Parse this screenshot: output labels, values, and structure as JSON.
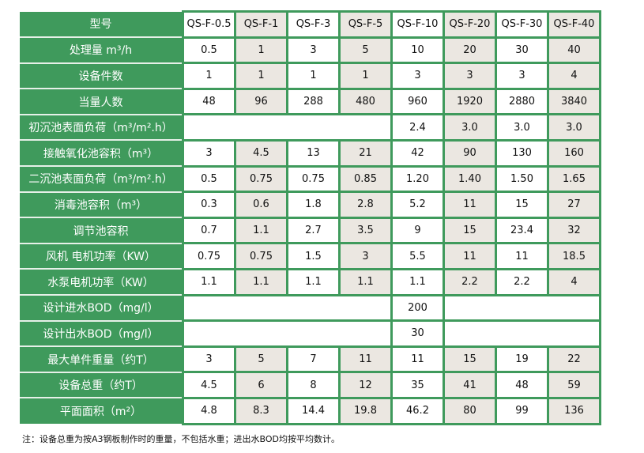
{
  "table": {
    "colors": {
      "label_bg": "#3f9a5c",
      "border": "#3f9a5c",
      "alt_cell": "#ebe7e1"
    },
    "rows": [
      {
        "label": "型号",
        "cells": [
          {
            "v": "QS-F-0.5"
          },
          {
            "v": "QS-F-1"
          },
          {
            "v": "QS-F-3"
          },
          {
            "v": "QS-F-5"
          },
          {
            "v": "QS-F-10"
          },
          {
            "v": "QS-F-20"
          },
          {
            "v": "QS-F-30"
          },
          {
            "v": "QS-F-40"
          }
        ]
      },
      {
        "label": "处理量 m³/h",
        "cells": [
          {
            "v": "0.5"
          },
          {
            "v": "1"
          },
          {
            "v": "3"
          },
          {
            "v": "5"
          },
          {
            "v": "10"
          },
          {
            "v": "20"
          },
          {
            "v": "30"
          },
          {
            "v": "40"
          }
        ]
      },
      {
        "label": "设备件数",
        "cells": [
          {
            "v": "1"
          },
          {
            "v": "1"
          },
          {
            "v": "1"
          },
          {
            "v": "1"
          },
          {
            "v": "3"
          },
          {
            "v": "3"
          },
          {
            "v": "3"
          },
          {
            "v": "4"
          }
        ]
      },
      {
        "label": "当量人数",
        "cells": [
          {
            "v": "48"
          },
          {
            "v": "96"
          },
          {
            "v": "288"
          },
          {
            "v": "480"
          },
          {
            "v": "960"
          },
          {
            "v": "1920"
          },
          {
            "v": "2880"
          },
          {
            "v": "3840"
          }
        ]
      },
      {
        "label": "初沉池表面负荷（m³/m².h）",
        "cells": [
          {
            "v": "",
            "span": 4
          },
          {
            "v": "2.4"
          },
          {
            "v": "3.0"
          },
          {
            "v": "3.0"
          },
          {
            "v": "3.0"
          }
        ]
      },
      {
        "label": "接触氧化池容积（m³）",
        "cells": [
          {
            "v": "3"
          },
          {
            "v": "4.5"
          },
          {
            "v": "13"
          },
          {
            "v": "21"
          },
          {
            "v": "42"
          },
          {
            "v": "90"
          },
          {
            "v": "130"
          },
          {
            "v": "160"
          }
        ]
      },
      {
        "label": "二沉池表面负荷（m³/m².h）",
        "cells": [
          {
            "v": "0.5"
          },
          {
            "v": "0.75"
          },
          {
            "v": "0.75"
          },
          {
            "v": "0.85"
          },
          {
            "v": "1.20"
          },
          {
            "v": "1.40"
          },
          {
            "v": "1.50"
          },
          {
            "v": "1.65"
          }
        ]
      },
      {
        "label": "消毒池容积（m³）",
        "cells": [
          {
            "v": "0.3"
          },
          {
            "v": "0.6"
          },
          {
            "v": "1.8"
          },
          {
            "v": "2.8"
          },
          {
            "v": "5.2"
          },
          {
            "v": "11"
          },
          {
            "v": "15"
          },
          {
            "v": "27"
          }
        ]
      },
      {
        "label": "调节池容积",
        "cells": [
          {
            "v": "0.7"
          },
          {
            "v": "1.1"
          },
          {
            "v": "2.7"
          },
          {
            "v": "3.5"
          },
          {
            "v": "9"
          },
          {
            "v": "15"
          },
          {
            "v": "23.4"
          },
          {
            "v": "32"
          }
        ]
      },
      {
        "label": "风机 电机功率（KW）",
        "cells": [
          {
            "v": "0.75"
          },
          {
            "v": "0.75"
          },
          {
            "v": "1.5"
          },
          {
            "v": "3"
          },
          {
            "v": "5.5"
          },
          {
            "v": "11"
          },
          {
            "v": "11"
          },
          {
            "v": "18.5"
          }
        ]
      },
      {
        "label": "水泵电机功率（KW）",
        "cells": [
          {
            "v": "1.1"
          },
          {
            "v": "1.1"
          },
          {
            "v": "1.1"
          },
          {
            "v": "1.1"
          },
          {
            "v": "1.1"
          },
          {
            "v": "2.2"
          },
          {
            "v": "2.2"
          },
          {
            "v": "4"
          }
        ]
      },
      {
        "label": "设计进水BOD（mg/l）",
        "cells": [
          {
            "v": "",
            "span": 4
          },
          {
            "v": "200"
          },
          {
            "v": "",
            "span": 3
          }
        ]
      },
      {
        "label": "设计出水BOD（mg/l）",
        "cells": [
          {
            "v": "",
            "span": 4
          },
          {
            "v": "30"
          },
          {
            "v": "",
            "span": 3
          }
        ]
      },
      {
        "label": "最大单件重量（约T）",
        "cells": [
          {
            "v": "3"
          },
          {
            "v": "5"
          },
          {
            "v": "7"
          },
          {
            "v": "11"
          },
          {
            "v": "11"
          },
          {
            "v": "15"
          },
          {
            "v": "19"
          },
          {
            "v": "22"
          }
        ]
      },
      {
        "label": "设备总重（约T）",
        "cells": [
          {
            "v": "4.5"
          },
          {
            "v": "6"
          },
          {
            "v": "8"
          },
          {
            "v": "12"
          },
          {
            "v": "35"
          },
          {
            "v": "41"
          },
          {
            "v": "48"
          },
          {
            "v": "59"
          }
        ]
      },
      {
        "label": "平面面积（m²）",
        "cells": [
          {
            "v": "4.8"
          },
          {
            "v": "8.3"
          },
          {
            "v": "14.4"
          },
          {
            "v": "19.8"
          },
          {
            "v": "46.2"
          },
          {
            "v": "80"
          },
          {
            "v": "99"
          },
          {
            "v": "136"
          }
        ]
      }
    ]
  },
  "note": "注：设备总重为按A3钢板制作时的重量，不包括水重；进出水BOD均按平均数计。"
}
